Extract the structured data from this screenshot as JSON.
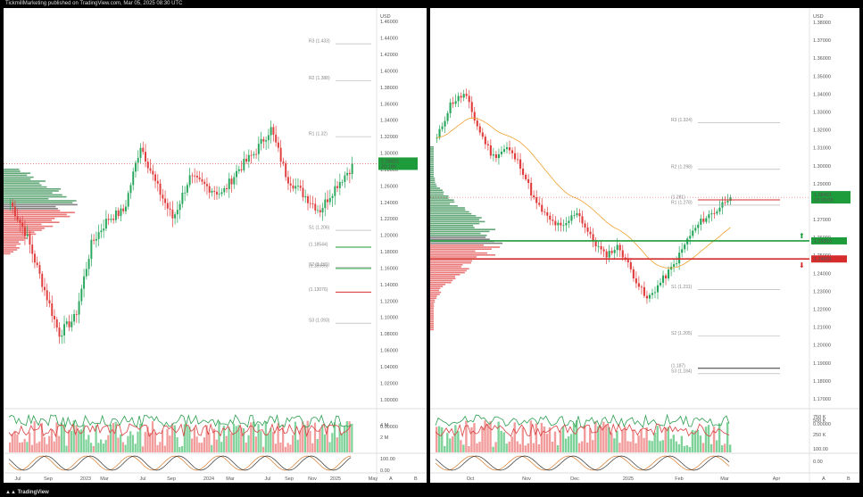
{
  "header": {
    "publisher": "TickmillMarketing published on TradingView.com, Mar 05, 2025 08:30 UTC"
  },
  "footer": {
    "brand": "TradingView"
  },
  "colors": {
    "up": "#26a65b",
    "down": "#e03c3c",
    "ma": "#f0a030",
    "green_line": "#1e9b3a",
    "red_line": "#d62c2c"
  },
  "chart_data": [
    {
      "type": "candlestick",
      "pane": "left",
      "currency_label": "USD",
      "y_ticks": [
        "1.46000",
        "1.44000",
        "1.42000",
        "1.40000",
        "1.38000",
        "1.36000",
        "1.34000",
        "1.32000",
        "1.30000",
        "1.28000",
        "1.26000",
        "1.24000",
        "1.22000",
        "1.20000",
        "1.18000",
        "1.16000",
        "1.14000",
        "1.12000",
        "1.10000",
        "1.08000",
        "1.06000",
        "1.04000",
        "1.02000",
        "1.00000"
      ],
      "ylim": [
        0.99,
        1.47
      ],
      "x_ticks": [
        "Jul",
        "Sep",
        "2023",
        "Mar",
        "Jul",
        "Sep",
        "2024",
        "Mar",
        "Jul",
        "Sep",
        "Nov",
        "2025",
        "May"
      ],
      "price_tag": {
        "value": "1.28421",
        "sub": "20:18h"
      },
      "levels": [
        {
          "label": "R3 (1.433)",
          "value": 1.433,
          "color": "#aaaaaa"
        },
        {
          "label": "R2 (1.388)",
          "value": 1.388,
          "color": "#aaaaaa"
        },
        {
          "label": "R1 (1.32)",
          "value": 1.32,
          "color": "#aaaaaa"
        },
        {
          "label": "S1 (1.206)",
          "value": 1.206,
          "color": "#aaaaaa"
        },
        {
          "label": "(1.18544)",
          "value": 1.18544,
          "color": "#1e9b3a"
        },
        {
          "label": "S2 (1.161)",
          "value": 1.161,
          "color": "#aaaaaa"
        },
        {
          "label": "(1.15955)",
          "value": 1.15955,
          "color": "#1e9b3a"
        },
        {
          "label": "(1.13076)",
          "value": 1.13076,
          "color": "#d62c2c"
        },
        {
          "label": "S3 (1.093)",
          "value": 1.093,
          "color": "#aaaaaa"
        }
      ],
      "indicator_ticks": [
        "0.00000",
        "4 M",
        "2 M",
        "100.00",
        "0.00"
      ],
      "bottom_right": [
        "A",
        "B"
      ]
    },
    {
      "type": "candlestick",
      "pane": "right",
      "currency_label": "USD",
      "y_ticks": [
        "1.38000",
        "1.37000",
        "1.36000",
        "1.35000",
        "1.34000",
        "1.33000",
        "1.32000",
        "1.31000",
        "1.30000",
        "1.29000",
        "1.28000",
        "1.27000",
        "1.26000",
        "1.25000",
        "1.24000",
        "1.23000",
        "1.22000",
        "1.21000",
        "1.20000",
        "1.19000",
        "1.18000",
        "1.17000"
      ],
      "ylim": [
        1.165,
        1.385
      ],
      "x_ticks": [
        "Oct",
        "Nov",
        "Dec",
        "2025",
        "Feb",
        "Mar",
        "Apr"
      ],
      "price_tag": {
        "value": "1.28421",
        "sub": "13:29:08"
      },
      "green_tag": {
        "value": "1.25810",
        "num": 1.2581
      },
      "red_tag": {
        "value": "1.24801",
        "num": 1.24801
      },
      "levels": [
        {
          "label": "R3 (1.324)",
          "value": 1.324,
          "color": "#aaaaaa"
        },
        {
          "label": "R2 (1.298)",
          "value": 1.298,
          "color": "#aaaaaa"
        },
        {
          "label": "(1.281)",
          "value": 1.281,
          "color": "#d62c2c"
        },
        {
          "label": "R1 (1.278)",
          "value": 1.278,
          "color": "#aaaaaa"
        },
        {
          "label": "S1 (1.231)",
          "value": 1.231,
          "color": "#aaaaaa"
        },
        {
          "label": "S2 (1.205)",
          "value": 1.205,
          "color": "#aaaaaa"
        },
        {
          "label": "(1.187)",
          "value": 1.187,
          "color": "#333333"
        },
        {
          "label": "S3 (1.184)",
          "value": 1.184,
          "color": "#aaaaaa"
        }
      ],
      "indicator_ticks": [
        "750 K",
        "0.00000",
        "500 K",
        "250 K",
        "100.00",
        "0.00"
      ],
      "bottom_right": [
        "A",
        "B"
      ]
    }
  ]
}
